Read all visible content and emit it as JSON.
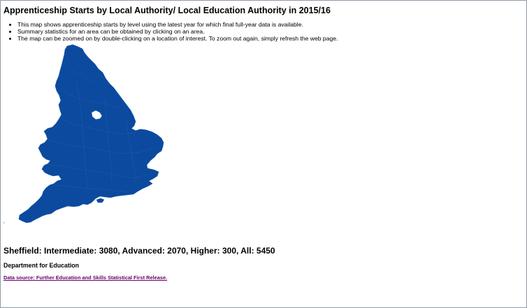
{
  "page": {
    "title": "Apprenticeship Starts by Local Authority/ Local Education Authority in 2015/16"
  },
  "info_bullets": [
    "This map shows apprenticeship starts by level using the latest year for which final full-year data is available.",
    "Summary statistics for an area can be obtained by clicking on an area.",
    "The map can be zoomed on by double-clicking on a location of interest. To zoom out again, simply refresh the web page."
  ],
  "map": {
    "fill_color": "#0b4a9e",
    "border_color": "#1d5aa8",
    "region": "England"
  },
  "summary": {
    "text": "Sheffield: Intermediate: 3080, Advanced: 2070, Higher: 300, All: 5450",
    "area": "Sheffield",
    "intermediate": 3080,
    "advanced": 2070,
    "higher": 300,
    "all": 5450
  },
  "organisation": "Department for Education",
  "source_link": {
    "label": "Data source: Further Education and Skills Statistical First Release.",
    "color": "#660066"
  },
  "colors": {
    "frame_border": "#8c9bab"
  }
}
